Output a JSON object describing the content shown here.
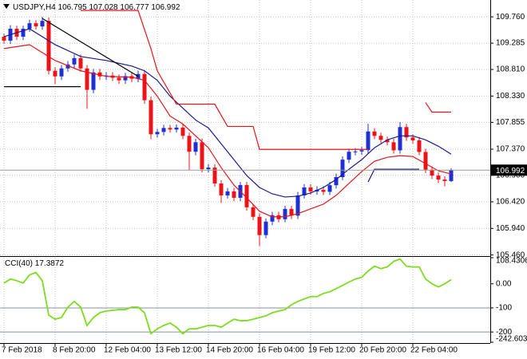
{
  "chart_data": [
    {
      "type": "candlestick",
      "title": "USDJPY,H4",
      "categories": [
        "7 Feb 2018",
        null,
        null,
        null,
        null,
        null,
        null,
        null,
        "8 Feb 20:00",
        null,
        null,
        null,
        null,
        null,
        null,
        null,
        "12 Feb 04:00",
        null,
        null,
        null,
        null,
        null,
        null,
        null,
        "13 Feb 12:00",
        null,
        null,
        null,
        null,
        null,
        null,
        null,
        "14 Feb 20:00",
        null,
        null,
        null,
        null,
        null,
        null,
        null,
        "16 Feb 04:00",
        null,
        null,
        null,
        null,
        null,
        null,
        null,
        "19 Feb 12:00",
        null,
        null,
        null,
        null,
        null,
        null,
        null,
        "20 Feb 20:00",
        null,
        null,
        null,
        null,
        null,
        null,
        null,
        "22 Feb 04:00",
        null,
        null,
        null,
        null,
        null,
        null
      ],
      "open": [
        109.4,
        109.33,
        109.545,
        109.402,
        109.545,
        109.645,
        109.588,
        109.688,
        108.786,
        108.685,
        108.829,
        108.9,
        109.015,
        108.829,
        108.442,
        108.757,
        108.685,
        108.7,
        108.66,
        108.614,
        108.69,
        108.643,
        108.728,
        108.255,
        107.64,
        107.682,
        107.754,
        107.725,
        107.76,
        107.611,
        107.324,
        107.496,
        107.009,
        107.038,
        106.751,
        106.536,
        106.608,
        106.493,
        106.723,
        106.321,
        106.149,
        105.819,
        106.063,
        106.178,
        106.106,
        106.292,
        106.17,
        106.536,
        106.679,
        106.608,
        106.636,
        106.6,
        106.72,
        106.866,
        107.181,
        107.324,
        107.33,
        107.353,
        107.69,
        107.611,
        107.539,
        107.496,
        107.35,
        107.77,
        107.582,
        107.53,
        107.32,
        107.0,
        106.894,
        106.822,
        106.795
      ],
      "high": [
        109.46,
        109.61,
        109.6,
        109.6,
        109.71,
        109.7,
        109.76,
        109.75,
        108.85,
        108.89,
        108.96,
        109.08,
        109.08,
        108.89,
        108.82,
        108.82,
        108.76,
        108.76,
        108.72,
        108.75,
        108.75,
        108.79,
        108.79,
        108.32,
        107.74,
        107.81,
        107.81,
        107.82,
        107.82,
        107.67,
        107.56,
        107.56,
        107.1,
        107.1,
        106.81,
        106.67,
        106.67,
        106.78,
        106.78,
        106.38,
        106.21,
        106.12,
        106.24,
        106.24,
        106.35,
        106.35,
        106.6,
        106.74,
        106.74,
        106.7,
        106.7,
        106.78,
        106.93,
        107.24,
        107.38,
        107.39,
        107.41,
        107.83,
        107.75,
        107.67,
        107.6,
        107.56,
        107.86,
        107.83,
        107.64,
        107.59,
        107.38,
        107.06,
        106.95,
        106.88,
        107.028
      ],
      "low": [
        109.27,
        109.27,
        109.34,
        109.34,
        109.49,
        109.53,
        109.53,
        108.72,
        108.55,
        108.62,
        108.77,
        108.84,
        108.77,
        108.1,
        108.38,
        108.62,
        108.62,
        108.6,
        108.55,
        108.55,
        108.58,
        108.58,
        108.19,
        107.55,
        107.58,
        107.62,
        107.67,
        107.67,
        107.55,
        107.0,
        107.26,
        106.95,
        106.95,
        106.69,
        106.4,
        106.48,
        106.43,
        106.43,
        106.26,
        106.09,
        105.62,
        105.76,
        106.0,
        106.05,
        106.05,
        106.11,
        106.11,
        106.48,
        106.55,
        106.55,
        106.54,
        106.54,
        106.66,
        106.81,
        107.12,
        107.26,
        107.27,
        107.29,
        107.55,
        107.48,
        107.44,
        107.29,
        107.29,
        107.52,
        107.47,
        107.26,
        106.94,
        106.83,
        106.76,
        106.7,
        106.777
      ],
      "close": [
        109.33,
        109.545,
        109.402,
        109.545,
        109.645,
        109.588,
        109.688,
        108.786,
        108.685,
        108.829,
        108.9,
        109.015,
        108.829,
        108.442,
        108.757,
        108.685,
        108.7,
        108.66,
        108.614,
        108.69,
        108.643,
        108.728,
        108.255,
        107.64,
        107.682,
        107.754,
        107.725,
        107.76,
        107.611,
        107.324,
        107.496,
        107.009,
        107.038,
        106.751,
        106.536,
        106.608,
        106.493,
        106.723,
        106.321,
        106.149,
        105.819,
        106.063,
        106.178,
        106.106,
        106.292,
        106.17,
        106.536,
        106.679,
        106.608,
        106.636,
        106.6,
        106.72,
        106.866,
        107.181,
        107.324,
        107.33,
        107.353,
        107.69,
        107.611,
        107.539,
        107.496,
        107.35,
        107.77,
        107.582,
        107.53,
        107.32,
        107.0,
        106.894,
        106.822,
        106.795,
        106.992
      ],
      "up_color": "#1f2fd0",
      "down_color": "#e8141a",
      "ylim": [
        105.44,
        110.05
      ],
      "yticks": [
        {
          "value": 109.76,
          "label": "109.760"
        },
        109.285,
        {
          "value": 108.81,
          "label": "108.810"
        },
        {
          "value": 108.33,
          "label": "108.330"
        },
        107.855,
        {
          "value": 107.37,
          "label": "107.370"
        },
        {
          "value": 106.9,
          "label": "106.900"
        },
        {
          "value": 106.42,
          "label": "106.420"
        },
        {
          "value": 105.94,
          "label": "105.940"
        },
        {
          "value": 105.46,
          "label": "105.460"
        }
      ],
      "grid": true,
      "last_price": 106.992,
      "lines": [
        {
          "color": "#e8141a",
          "x": [
            0,
            4,
            8,
            12,
            16,
            20,
            22,
            24,
            26,
            28,
            30,
            32,
            34,
            36,
            38,
            40,
            42,
            44,
            46,
            48,
            50,
            52,
            54,
            56,
            58,
            60,
            62,
            64,
            66,
            68,
            70
          ],
          "values": [
            109.187,
            109.258,
            108.972,
            108.786,
            108.685,
            108.671,
            108.614,
            108.327,
            107.969,
            107.826,
            107.611,
            107.396,
            107.038,
            106.722,
            106.493,
            106.249,
            106.149,
            106.149,
            106.206,
            106.292,
            106.378,
            106.536,
            106.751,
            106.966,
            107.152,
            107.224,
            107.253,
            107.238,
            107.109,
            106.98,
            106.923
          ]
        },
        {
          "color": "#1a1a8c",
          "x": [
            0,
            4,
            8,
            12,
            16,
            20,
            22,
            24,
            26,
            28,
            30,
            32,
            34,
            36,
            38,
            40,
            42,
            44,
            46,
            48,
            50,
            52,
            54,
            56,
            58,
            60,
            62,
            64,
            66,
            68,
            70
          ],
          "values": [
            109.402,
            109.545,
            109.258,
            109.044,
            108.972,
            108.872,
            108.786,
            108.614,
            108.327,
            108.112,
            107.897,
            107.754,
            107.467,
            107.181,
            106.894,
            106.679,
            106.564,
            106.507,
            106.521,
            106.579,
            106.679,
            106.823,
            107.009,
            107.181,
            107.396,
            107.539,
            107.611,
            107.611,
            107.539,
            107.424,
            107.281
          ]
        },
        {
          "color": "#e8141a",
          "x": [
            12,
            21,
            23,
            24,
            27,
            33,
            35,
            39,
            40,
            57,
            60,
            66,
            67,
            70
          ],
          "values": [
            109.875,
            109.875,
            109.187,
            108.786,
            108.184,
            108.184,
            107.782,
            107.782,
            107.367,
            107.367,
            null,
            108.212,
            108.04,
            108.04
          ]
        },
        {
          "color": "#000000",
          "x": [
            6,
            21
          ],
          "values": [
            109.731,
            108.685
          ]
        },
        {
          "color": "#000000",
          "x": [
            0,
            12
          ],
          "values": [
            108.499,
            108.499
          ]
        },
        {
          "color": "#1a1a8c",
          "x": [
            57,
            58,
            65
          ],
          "values": [
            106.779,
            107.009,
            107.009
          ]
        }
      ]
    },
    {
      "type": "line",
      "title": "CCI(40)",
      "values": [
        3,
        20,
        13,
        3,
        37,
        47,
        13,
        -130,
        -147,
        -140,
        -97,
        -73,
        -97,
        -173,
        -140,
        -120,
        -113,
        -110,
        -107,
        -107,
        -97,
        -97,
        -120,
        -207,
        -187,
        -173,
        -163,
        -180,
        -207,
        -187,
        -187,
        -180,
        -173,
        -173,
        -180,
        -163,
        -147,
        -153,
        -153,
        -147,
        -140,
        -133,
        -120,
        -113,
        -107,
        -87,
        -73,
        -63,
        -53,
        -53,
        -40,
        -33,
        -20,
        -7,
        7,
        20,
        27,
        53,
        73,
        63,
        70,
        93,
        103,
        73,
        70,
        70,
        20,
        0,
        -13,
        0,
        17.3872
      ],
      "color": "#7ddc1f",
      "ylim": [
        -242.6037,
        108.4306
      ],
      "yticks": [
        108.4306,
        {
          "value": 0,
          "label": "0.00"
        },
        -100,
        -200,
        -242.6037
      ],
      "levels": [
        -100,
        -200
      ]
    }
  ]
}
